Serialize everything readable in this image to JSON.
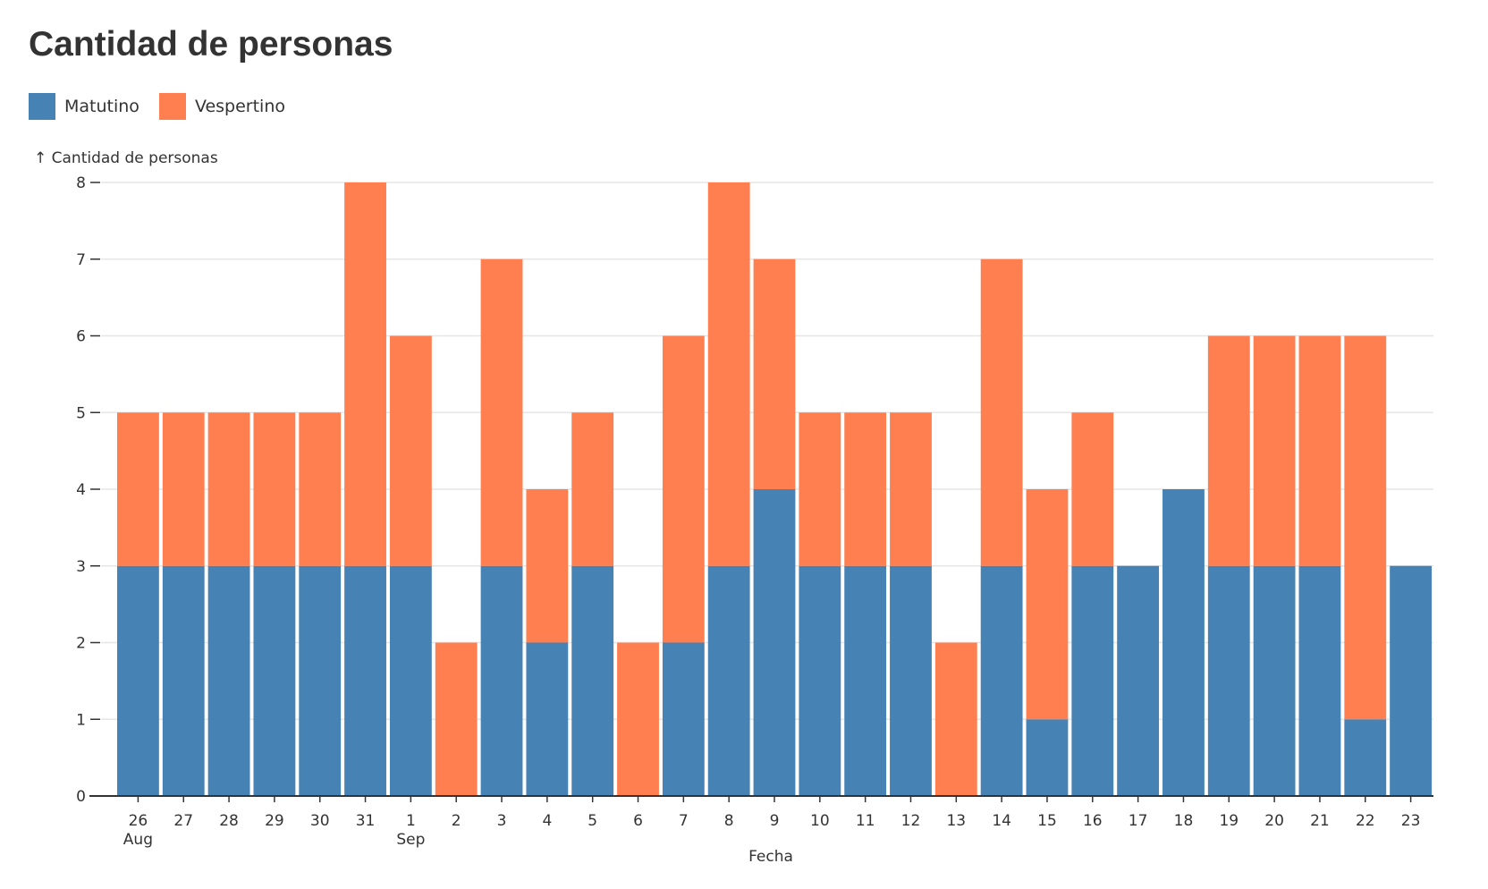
{
  "chart_data": {
    "type": "bar",
    "stacked": true,
    "title": "Cantidad de personas",
    "ylabel": "↑ Cantidad de personas",
    "xlabel": "Fecha",
    "ylim": [
      0,
      8
    ],
    "yticks": [
      "0",
      "1",
      "2",
      "3",
      "4",
      "5",
      "6",
      "7",
      "8"
    ],
    "grid": true,
    "legend_position": "top-left",
    "categories": [
      "26",
      "27",
      "28",
      "29",
      "30",
      "31",
      "1",
      "2",
      "3",
      "4",
      "5",
      "6",
      "7",
      "8",
      "9",
      "10",
      "11",
      "12",
      "13",
      "14",
      "15",
      "16",
      "17",
      "18",
      "19",
      "20",
      "21",
      "22",
      "23"
    ],
    "month_labels": [
      {
        "index": 0,
        "label": "Aug"
      },
      {
        "index": 6,
        "label": "Sep"
      }
    ],
    "series": [
      {
        "name": "Matutino",
        "color": "#4682b4",
        "values": [
          3,
          3,
          3,
          3,
          3,
          3,
          3,
          0,
          3,
          2,
          3,
          0,
          2,
          3,
          4,
          3,
          3,
          3,
          0,
          3,
          1,
          3,
          3,
          4,
          3,
          3,
          3,
          1,
          3
        ]
      },
      {
        "name": "Vespertino",
        "color": "#ff7f50",
        "values": [
          2,
          2,
          2,
          2,
          2,
          5,
          3,
          2,
          4,
          2,
          2,
          2,
          4,
          5,
          3,
          2,
          2,
          2,
          2,
          4,
          3,
          2,
          0,
          0,
          3,
          3,
          3,
          5,
          0
        ]
      }
    ]
  }
}
